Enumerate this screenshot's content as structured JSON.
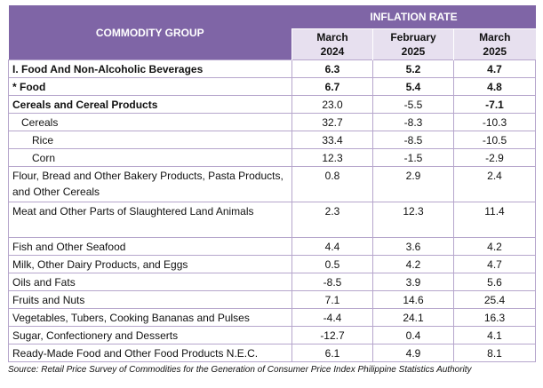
{
  "table": {
    "header": {
      "group": "COMMODITY GROUP",
      "rate": "INFLATION RATE",
      "periods": [
        {
          "month": "March",
          "year": "2024"
        },
        {
          "month": "February",
          "year": "2025"
        },
        {
          "month": "March",
          "year": "2025"
        }
      ]
    },
    "rows": [
      {
        "label": "I. Food And Non-Alcoholic Beverages",
        "values": [
          "6.3",
          "5.2",
          "4.7"
        ]
      },
      {
        "label": "* Food",
        "values": [
          "6.7",
          "5.4",
          "4.8"
        ]
      },
      {
        "label": "Cereals and Cereal Products",
        "values": [
          "23.0",
          "-5.5",
          "-7.1"
        ]
      },
      {
        "label": "Cereals",
        "values": [
          "32.7",
          "-8.3",
          "-10.3"
        ]
      },
      {
        "label": "Rice",
        "values": [
          "33.4",
          "-8.5",
          "-10.5"
        ]
      },
      {
        "label": "Corn",
        "values": [
          "12.3",
          "-1.5",
          "-2.9"
        ]
      },
      {
        "label": "Flour, Bread and Other Bakery Products, Pasta Products, and Other Cereals",
        "values": [
          "0.8",
          "2.9",
          "2.4"
        ]
      },
      {
        "label": "Meat and Other Parts of Slaughtered Land Animals",
        "values": [
          "2.3",
          "12.3",
          "11.4"
        ]
      },
      {
        "label": "Fish and Other Seafood",
        "values": [
          "4.4",
          "3.6",
          "4.2"
        ]
      },
      {
        "label": "Milk, Other Dairy Products, and Eggs",
        "values": [
          "0.5",
          "4.2",
          "4.7"
        ]
      },
      {
        "label": "Oils and Fats",
        "values": [
          "-8.5",
          "3.9",
          "5.6"
        ]
      },
      {
        "label": "Fruits and Nuts",
        "values": [
          "7.1",
          "14.6",
          "25.4"
        ]
      },
      {
        "label": "Vegetables, Tubers, Cooking Bananas and Pulses",
        "values": [
          "-4.4",
          "24.1",
          "16.3"
        ]
      },
      {
        "label": "Sugar, Confectionery and Desserts",
        "values": [
          "-12.7",
          "0.4",
          "4.1"
        ]
      },
      {
        "label": "Ready-Made Food and Other Food Products N.E.C.",
        "values": [
          "6.1",
          "4.9",
          "8.1"
        ]
      }
    ]
  },
  "source": "Source: Retail Price Survey of Commodities for the Generation of Consumer Price Index Philippine Statistics Authority"
}
